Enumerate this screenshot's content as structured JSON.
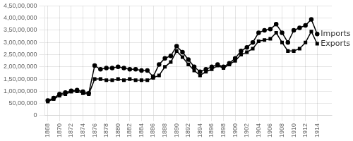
{
  "chart_data": {
    "type": "line",
    "x": [
      1868,
      1869,
      1870,
      1871,
      1872,
      1873,
      1874,
      1875,
      1876,
      1877,
      1878,
      1879,
      1880,
      1881,
      1882,
      1883,
      1884,
      1885,
      1886,
      1887,
      1888,
      1889,
      1890,
      1891,
      1892,
      1893,
      1894,
      1895,
      1896,
      1897,
      1898,
      1899,
      1900,
      1901,
      1902,
      1903,
      1904,
      1905,
      1906,
      1907,
      1908,
      1909,
      1910,
      1911,
      1912,
      1913,
      1914
    ],
    "series": [
      {
        "name": "Imports",
        "color": "#000000",
        "marker": "circle",
        "line_style": "solid",
        "values": [
          6200000,
          7200000,
          8800000,
          9500000,
          10200000,
          10500000,
          9800000,
          9200000,
          20500000,
          19000000,
          19500000,
          19500000,
          20000000,
          19500000,
          19000000,
          19000000,
          18500000,
          18500000,
          16000000,
          21000000,
          23500000,
          24500000,
          28500000,
          26000000,
          23000000,
          20000000,
          18000000,
          19000000,
          20000000,
          21000000,
          20000000,
          21500000,
          23500000,
          26500000,
          28000000,
          30000000,
          34000000,
          35000000,
          35500000,
          37500000,
          34000000,
          30000000,
          35000000,
          36000000,
          37000000,
          39500000,
          33500000
        ]
      },
      {
        "name": "Exports",
        "color": "#000000",
        "marker": "square",
        "line_style": "solid",
        "values": [
          5800000,
          6800000,
          8200000,
          8800000,
          9800000,
          10000000,
          9200000,
          8800000,
          15000000,
          15000000,
          14500000,
          14500000,
          15000000,
          14500000,
          15000000,
          14500000,
          14500000,
          14500000,
          15500000,
          16500000,
          20000000,
          22000000,
          26500000,
          24000000,
          21000000,
          18500000,
          16500000,
          18000000,
          19000000,
          20500000,
          19500000,
          21000000,
          22500000,
          25000000,
          26000000,
          27500000,
          30500000,
          31000000,
          31500000,
          34000000,
          30000000,
          26500000,
          26500000,
          27500000,
          30000000,
          34500000,
          29500000
        ]
      }
    ],
    "xlim": [
      1867.5,
      1916.5
    ],
    "xticks": [
      1868,
      1870,
      1872,
      1874,
      1876,
      1878,
      1880,
      1882,
      1884,
      1886,
      1888,
      1890,
      1892,
      1894,
      1896,
      1898,
      1900,
      1902,
      1904,
      1906,
      1908,
      1910,
      1912,
      1914
    ],
    "ylim": [
      0,
      45000000
    ],
    "yticks": [
      0,
      {
        "value": 5000000,
        "label": "50,00,000"
      },
      {
        "value": 10000000,
        "label": "1,00,00,000"
      },
      {
        "value": 15000000,
        "label": "1,50,00,000"
      },
      {
        "value": 20000000,
        "label": "2,00,00,000"
      },
      {
        "value": 25000000,
        "label": "2,50,00,000"
      },
      {
        "value": 30000000,
        "label": "3,00,00,000"
      },
      {
        "value": 35000000,
        "label": "3,50,00,000"
      },
      {
        "value": 40000000,
        "label": "4,00,00,000"
      },
      {
        "value": 45000000,
        "label": "4,50,00,000"
      }
    ],
    "grid": true
  }
}
